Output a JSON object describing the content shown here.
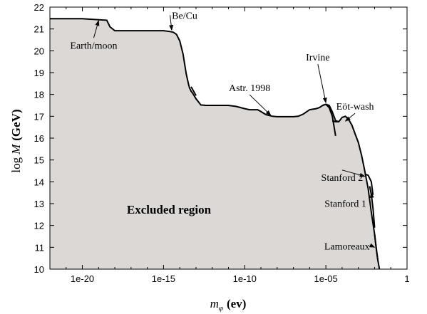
{
  "chart_data": {
    "type": "area",
    "xlabel_var": "m",
    "xlabel_sub": "φ",
    "xlabel_unit": "(ev)",
    "ylabel_prefix": "log",
    "ylabel_var": "M",
    "ylabel_unit": "(GeV)",
    "x_scale": "log",
    "xlim": [
      1e-22,
      1
    ],
    "ylim": [
      10,
      22
    ],
    "x_ticks": [
      1e-20,
      1e-15,
      1e-10,
      1e-05,
      1
    ],
    "x_tick_labels": [
      "1e-20",
      "1e-15",
      "1e-10",
      "1e-05",
      "1"
    ],
    "y_ticks": [
      10,
      11,
      12,
      13,
      14,
      15,
      16,
      17,
      18,
      19,
      20,
      21,
      22
    ],
    "y_tick_labels": [
      "10",
      "11",
      "12",
      "13",
      "14",
      "15",
      "16",
      "17",
      "18",
      "19",
      "20",
      "21",
      "22"
    ],
    "fill_color": "#dcd8d6",
    "line_color": "#000000",
    "region_label": "Excluded region",
    "boundary": {
      "x": [
        1e-22,
        1e-21,
        1e-20,
        3.2e-19,
        5e-19,
        1e-18,
        1e-17,
        1e-16,
        3.2e-16,
        1e-15,
        2.5e-15,
        4e-15,
        6.3e-15,
        1e-14,
        1.6e-14,
        2.5e-14,
        3.5e-14,
        4e-14,
        5e-14,
        6.3e-14,
        1e-13,
        2e-13,
        4e-13,
        1e-12,
        4e-12,
        1e-11,
        3e-11,
        1e-10,
        2e-10,
        4e-10,
        6.3e-10,
        1e-09,
        2e-09,
        5e-09,
        1e-08,
        3e-08,
        1e-07,
        2e-07,
        4e-07,
        1e-06,
        2.5e-06,
        4e-06,
        6.3e-06,
        1e-05,
        1.6e-05,
        2.5e-05,
        4e-05,
        6.3e-05,
        0.0001,
        0.00016,
        0.00025,
        0.0004,
        0.00063,
        0.001,
        0.0016,
        0.0025,
        0.004,
        0.0063,
        0.01,
        0.013,
        0.016,
        0.02
      ],
      "y": [
        21.47,
        21.47,
        21.47,
        21.4,
        21.1,
        20.92,
        20.92,
        20.92,
        20.92,
        20.92,
        20.88,
        20.85,
        20.75,
        20.45,
        19.85,
        18.95,
        18.45,
        18.3,
        18.15,
        18.05,
        17.8,
        17.52,
        17.5,
        17.5,
        17.5,
        17.5,
        17.45,
        17.35,
        17.3,
        17.3,
        17.3,
        17.22,
        17.08,
        17.0,
        16.98,
        16.98,
        16.98,
        17.0,
        17.1,
        17.3,
        17.35,
        17.4,
        17.5,
        17.55,
        17.5,
        17.2,
        16.8,
        16.75,
        16.95,
        17.0,
        16.85,
        16.6,
        16.2,
        15.8,
        15.2,
        14.5,
        13.7,
        12.6,
        11.6,
        10.9,
        10.4,
        10.0
      ]
    },
    "segments": [
      {
        "x": [
          5e-14,
          1e-13
        ],
        "y": [
          18.35,
          17.95
        ]
      },
      {
        "x": [
          6.3e-06,
          1e-05,
          1.6e-05,
          2.5e-05,
          4e-05
        ],
        "y": [
          17.5,
          17.55,
          17.4,
          17.0,
          16.1
        ]
      },
      {
        "x": [
          2.5e-05,
          4e-05,
          6.3e-05
        ],
        "y": [
          16.8,
          16.75,
          16.75
        ]
      },
      {
        "x": [
          0.0025,
          0.004,
          0.0063,
          0.008
        ],
        "y": [
          14.35,
          14.3,
          14.0,
          13.4
        ]
      },
      {
        "x": [
          0.005,
          0.0063,
          0.008,
          0.01
        ],
        "y": [
          13.8,
          13.4,
          12.8,
          11.9
        ]
      },
      {
        "x": [
          0.01,
          0.013,
          0.016
        ],
        "y": [
          11.6,
          10.9,
          10.4
        ]
      }
    ],
    "annotations": [
      {
        "text": "Be/Cu",
        "tx": 2e-14,
        "ty": 21.47,
        "ax": 3.2e-15,
        "ay": 20.95
      },
      {
        "text": "Earth/moon",
        "tx": 5e-20,
        "ty": 20.1,
        "ax": 1e-19,
        "ay": 21.38
      },
      {
        "text": "Astr. 1998",
        "tx": 2e-10,
        "ty": 18.15,
        "ax": 4e-09,
        "ay": 17.05
      },
      {
        "text": "Irvine",
        "tx": 3.2e-06,
        "ty": 19.55,
        "ax": 1e-05,
        "ay": 17.62
      },
      {
        "text": "Eöt-wash",
        "tx": 0.00063,
        "ty": 17.3,
        "ax": 0.00016,
        "ay": 16.78
      },
      {
        "text": "Stanford 2",
        "tx": 0.0001,
        "ty": 14.05,
        "ax": 0.0025,
        "ay": 14.25
      },
      {
        "text": "Stanford 1",
        "tx": 0.00016,
        "ty": 12.85,
        "ax": 0.0063,
        "ay": 13.5
      },
      {
        "text": "Lamoreaux",
        "tx": 0.0002,
        "ty": 10.9,
        "ax": 0.01,
        "ay": 11.0
      }
    ]
  }
}
